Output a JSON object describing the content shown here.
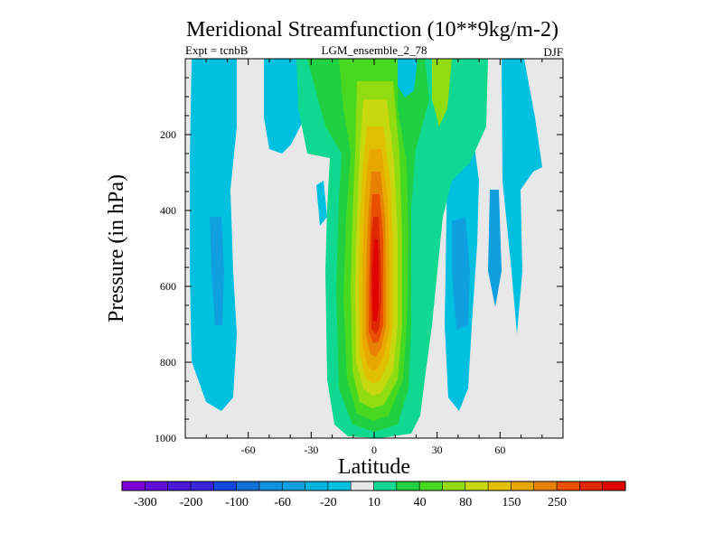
{
  "chart_data": {
    "type": "contour",
    "title": "Meridional Streamfunction (10**9kg/m-2)",
    "subtitle_left": "Expt = tcnbB",
    "subtitle_center": "LGM_ensemble_2_78",
    "subtitle_right": "DJF",
    "xlabel": "Latitude",
    "ylabel": "Pressure (in hPa)",
    "xlim": [
      -90,
      90
    ],
    "ylim": [
      1000,
      0
    ],
    "x_ticks": [
      -60,
      -30,
      0,
      30,
      60
    ],
    "x_tick_labels": [
      "-60",
      "-30",
      "0",
      "30",
      "60"
    ],
    "y_ticks": [
      200,
      400,
      600,
      800,
      1000
    ],
    "y_tick_labels": [
      "200",
      "400",
      "600",
      "800",
      "1000"
    ],
    "levels": [
      -300,
      -250,
      -200,
      -150,
      -100,
      -80,
      -60,
      -40,
      -20,
      -10,
      10,
      20,
      40,
      60,
      80,
      100,
      150,
      200,
      250,
      300
    ],
    "colorbar_labels": [
      "-300",
      "-200",
      "-100",
      "-60",
      "-20",
      "10",
      "40",
      "80",
      "150",
      "250"
    ],
    "colors": [
      "#7b00d8",
      "#6010d8",
      "#4a18d8",
      "#3a24d8",
      "#1448e0",
      "#1070d8",
      "#1090e0",
      "#10a0e0",
      "#00b4e0",
      "#00c0e0",
      "#e8e8e8",
      "#10d890",
      "#20d040",
      "#48d820",
      "#90dc10",
      "#c8d810",
      "#e0c000",
      "#e8a800",
      "#e88000",
      "#e85000",
      "#e02800",
      "#e00000"
    ],
    "background_color": "#e8e8e8",
    "cells": [
      {
        "lat": 0,
        "p": 30,
        "value": 60
      },
      {
        "lat": 0,
        "p": 100,
        "value": 120
      },
      {
        "lat": 0,
        "p": 200,
        "value": 200
      },
      {
        "lat": 0,
        "p": 350,
        "value": 260
      },
      {
        "lat": 0,
        "p": 500,
        "value": 290
      },
      {
        "lat": 0,
        "p": 650,
        "value": 300
      },
      {
        "lat": 0,
        "p": 800,
        "value": 150
      },
      {
        "lat": 0,
        "p": 950,
        "value": 20
      },
      {
        "lat": -8,
        "p": 500,
        "value": 150
      },
      {
        "lat": 8,
        "p": 500,
        "value": 150
      },
      {
        "lat": -75,
        "p": 400,
        "value": -30
      },
      {
        "lat": -70,
        "p": 650,
        "value": -50
      },
      {
        "lat": 40,
        "p": 600,
        "value": -60
      },
      {
        "lat": 65,
        "p": 300,
        "value": -20
      },
      {
        "lat": 20,
        "p": 100,
        "value": 40
      },
      {
        "lat": 50,
        "p": 50,
        "value": 20
      }
    ]
  }
}
